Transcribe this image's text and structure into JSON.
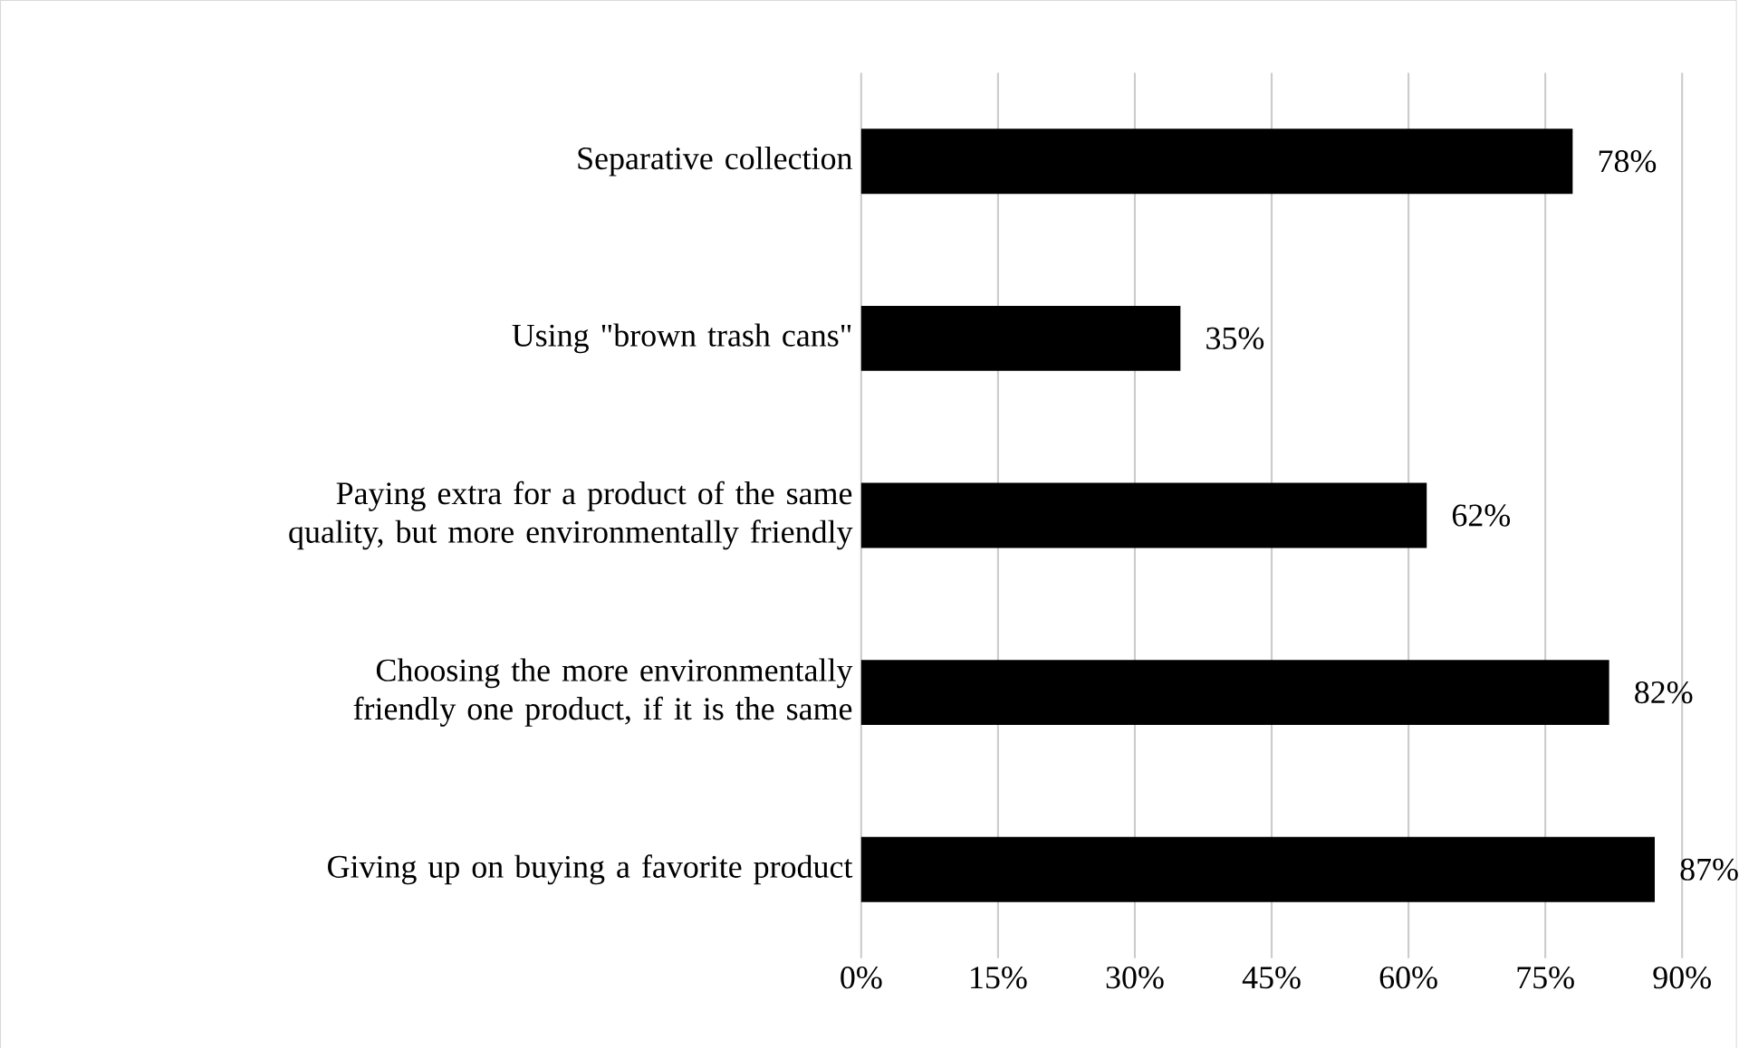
{
  "chart_data": {
    "type": "bar",
    "orientation": "horizontal",
    "categories": [
      "Separative collection",
      "Using \"brown trash cans\"",
      "Paying extra for a product of the same quality, but more environmentally friendly",
      "Choosing the more environmentally friendly one product, if it is the same",
      "Giving up on buying a favorite product"
    ],
    "values": [
      78,
      35,
      62,
      82,
      87
    ],
    "value_labels": [
      "78%",
      "35%",
      "62%",
      "82%",
      "87%"
    ],
    "color": "#000000",
    "xlim": [
      0,
      90
    ],
    "xticks": [
      {
        "value": 0,
        "label": "0%"
      },
      {
        "value": 15,
        "label": "15%"
      },
      {
        "value": 30,
        "label": "30%"
      },
      {
        "value": 45,
        "label": "45%"
      },
      {
        "value": 60,
        "label": "60%"
      },
      {
        "value": 75,
        "label": "75%"
      },
      {
        "value": 90,
        "label": "90%"
      }
    ],
    "grid": "x"
  }
}
